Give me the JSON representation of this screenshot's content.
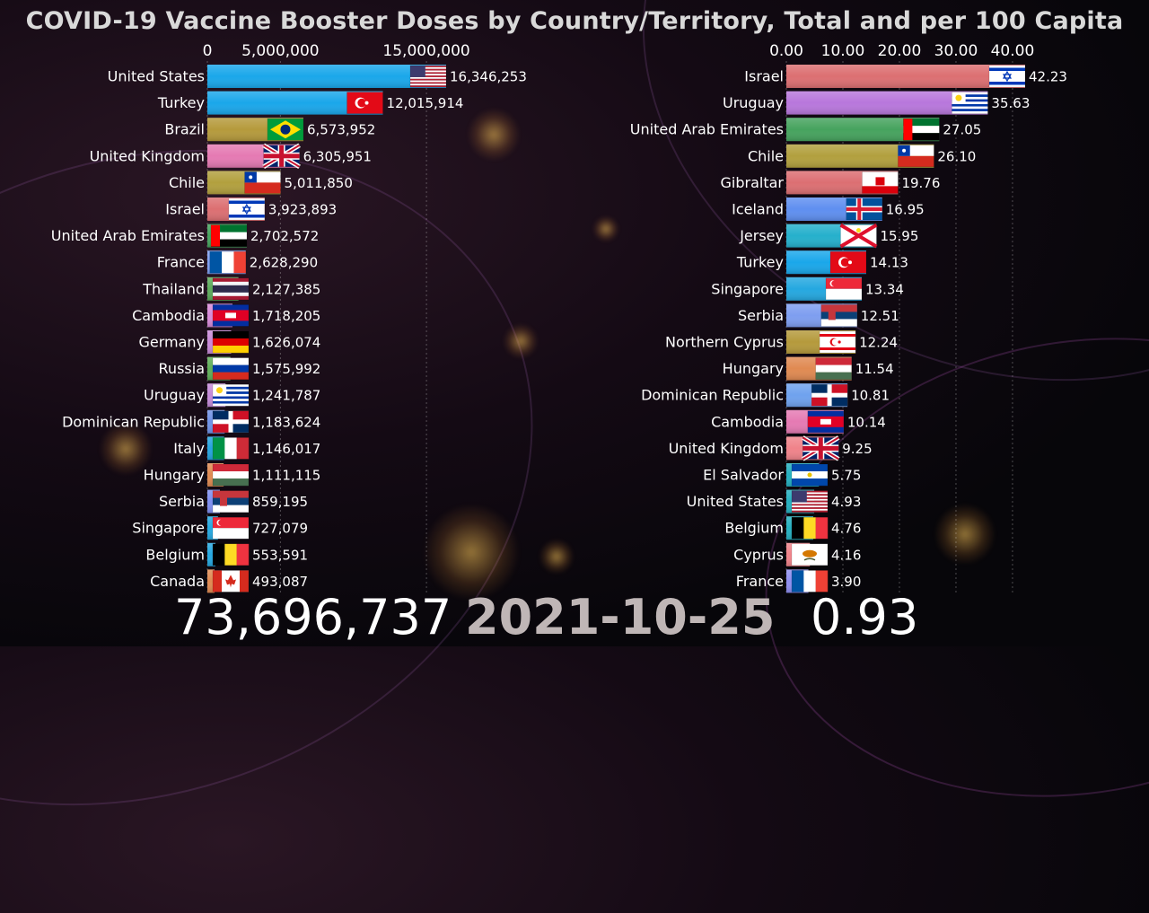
{
  "title": "COVID-19 Vaccine Booster Doses by Country/Territory, Total and per 100 Capita",
  "footer": {
    "total": "73,696,737",
    "date": "2021-10-25",
    "per_capita": "0.93"
  },
  "chart_data": [
    {
      "type": "bar",
      "orientation": "horizontal",
      "xlim": [
        0,
        16346253
      ],
      "x_ticks": [
        0,
        5000000,
        15000000
      ],
      "x_tick_labels": [
        "0",
        "5,000,000",
        "15,000,000"
      ],
      "categories": [
        "United States",
        "Turkey",
        "Brazil",
        "United Kingdom",
        "Chile",
        "Israel",
        "United Arab Emirates",
        "France",
        "Thailand",
        "Cambodia",
        "Germany",
        "Russia",
        "Uruguay",
        "Dominican Republic",
        "Italy",
        "Hungary",
        "Serbia",
        "Singapore",
        "Belgium",
        "Canada"
      ],
      "values": [
        16346253,
        12015914,
        6573952,
        6305951,
        5011850,
        3923893,
        2702572,
        2628290,
        2127385,
        1718205,
        1626074,
        1575992,
        1241787,
        1183624,
        1146017,
        1111115,
        859195,
        727079,
        553591,
        493087
      ],
      "value_labels": [
        "16,346,253",
        "12,015,914",
        "6,573,952",
        "6,305,951",
        "5,011,850",
        "3,923,893",
        "2,702,572",
        "2,628,290",
        "2,127,385",
        "1,718,205",
        "1,626,074",
        "1,575,992",
        "1,241,787",
        "1,183,624",
        "1,146,017",
        "1,111,115",
        "859,195",
        "727,079",
        "553,591",
        "493,087"
      ],
      "colors": [
        "#1aa7ea",
        "#1aa7ea",
        "#b59a3c",
        "#e57ab3",
        "#b2a03e",
        "#dc6f72",
        "#46a35e",
        "#7e9ef0",
        "#5caa5a",
        "#d78ad8",
        "#c88ad8",
        "#5fae58",
        "#c48ad8",
        "#6f92e6",
        "#25a3dd",
        "#e08a52",
        "#7e8ef0",
        "#25a8e0",
        "#25a8e0",
        "#e08a52"
      ],
      "flags": [
        "us",
        "tr",
        "br",
        "gb",
        "cl",
        "il",
        "ae",
        "fr",
        "th",
        "kh",
        "de",
        "ru",
        "uy",
        "do",
        "it",
        "hu",
        "rs",
        "sg",
        "be",
        "ca"
      ]
    },
    {
      "type": "bar",
      "orientation": "horizontal",
      "xlim": [
        0,
        42.23
      ],
      "x_ticks": [
        0,
        10,
        20,
        30,
        40
      ],
      "x_tick_labels": [
        "0.00",
        "10.00",
        "20.00",
        "30.00",
        "40.00"
      ],
      "categories": [
        "Israel",
        "Uruguay",
        "United Arab Emirates",
        "Chile",
        "Gibraltar",
        "Iceland",
        "Jersey",
        "Turkey",
        "Singapore",
        "Serbia",
        "Northern Cyprus",
        "Hungary",
        "Dominican Republic",
        "Cambodia",
        "United Kingdom",
        "El Salvador",
        "United States",
        "Belgium",
        "Cyprus",
        "France"
      ],
      "values": [
        42.23,
        35.63,
        27.05,
        26.1,
        19.76,
        16.95,
        15.95,
        14.13,
        13.34,
        12.51,
        12.24,
        11.54,
        10.81,
        10.14,
        9.25,
        5.75,
        4.93,
        4.76,
        4.16,
        3.9
      ],
      "value_labels": [
        "42.23",
        "35.63",
        "27.05",
        "26.10",
        "19.76",
        "16.95",
        "15.95",
        "14.13",
        "13.34",
        "12.51",
        "12.24",
        "11.54",
        "10.81",
        "10.14",
        "9.25",
        "5.75",
        "4.93",
        "4.76",
        "4.16",
        "3.90"
      ],
      "colors": [
        "#dc6f72",
        "#b877dc",
        "#46a35e",
        "#b2a03e",
        "#dc6f72",
        "#5f8ff0",
        "#25b0cc",
        "#1aa7ea",
        "#25a8e0",
        "#7e9ef0",
        "#b59a3c",
        "#e08a52",
        "#6fa2ee",
        "#e57ab3",
        "#f0838a",
        "#25b0c0",
        "#25b0c0",
        "#25b0c0",
        "#f0838a",
        "#8e8ef0"
      ],
      "flags": [
        "il",
        "uy",
        "ae",
        "cl",
        "gi",
        "is",
        "je",
        "tr",
        "sg",
        "rs",
        "nc",
        "hu",
        "do",
        "kh",
        "gb",
        "sv",
        "us",
        "be",
        "cy",
        "fr"
      ]
    }
  ]
}
